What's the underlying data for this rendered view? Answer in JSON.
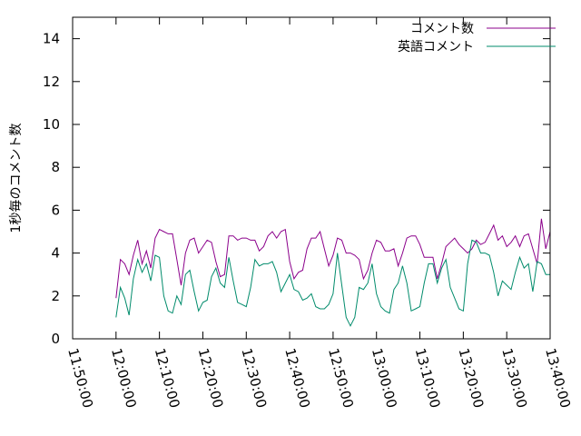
{
  "chart_data": {
    "type": "line",
    "ylabel": "1秒毎のコメント数",
    "xlabel": "",
    "ylim": [
      0,
      15
    ],
    "yticks": [
      0,
      2,
      4,
      6,
      8,
      10,
      12,
      14
    ],
    "xlim": [
      "11:50:00",
      "13:40:00"
    ],
    "xticks": [
      "11:50:00",
      "12:00:00",
      "12:10:00",
      "12:20:00",
      "12:30:00",
      "12:40:00",
      "12:50:00",
      "13:00:00",
      "13:10:00",
      "13:20:00",
      "13:30:00",
      "13:40:00"
    ],
    "grid": false,
    "legend_position": "top-right",
    "series": [
      {
        "name": "コメント数",
        "color": "#8b008b",
        "x": [
          "12:00:00",
          "12:01:00",
          "12:02:00",
          "12:03:00",
          "12:04:00",
          "12:05:00",
          "12:06:00",
          "12:07:00",
          "12:08:00",
          "12:09:00",
          "12:10:00",
          "12:11:00",
          "12:12:00",
          "12:13:00",
          "12:14:00",
          "12:15:00",
          "12:16:00",
          "12:17:00",
          "12:18:00",
          "12:19:00",
          "12:20:00",
          "12:21:00",
          "12:22:00",
          "12:23:00",
          "12:24:00",
          "12:25:00",
          "12:26:00",
          "12:27:00",
          "12:28:00",
          "12:29:00",
          "12:30:00",
          "12:31:00",
          "12:32:00",
          "12:33:00",
          "12:34:00",
          "12:35:00",
          "12:36:00",
          "12:37:00",
          "12:38:00",
          "12:39:00",
          "12:40:00",
          "12:41:00",
          "12:42:00",
          "12:43:00",
          "12:44:00",
          "12:45:00",
          "12:46:00",
          "12:47:00",
          "12:48:00",
          "12:49:00",
          "12:50:00",
          "12:51:00",
          "12:52:00",
          "12:53:00",
          "12:54:00",
          "12:55:00",
          "12:56:00",
          "12:57:00",
          "12:58:00",
          "12:59:00",
          "13:00:00",
          "13:01:00",
          "13:02:00",
          "13:03:00",
          "13:04:00",
          "13:05:00",
          "13:06:00",
          "13:07:00",
          "13:08:00",
          "13:09:00",
          "13:10:00",
          "13:11:00",
          "13:12:00",
          "13:13:00",
          "13:14:00",
          "13:15:00",
          "13:16:00",
          "13:17:00",
          "13:18:00",
          "13:19:00",
          "13:20:00",
          "13:21:00",
          "13:22:00",
          "13:23:00",
          "13:24:00",
          "13:25:00",
          "13:26:00",
          "13:27:00",
          "13:28:00",
          "13:29:00",
          "13:30:00",
          "13:31:00",
          "13:32:00",
          "13:33:00",
          "13:34:00",
          "13:35:00",
          "13:36:00",
          "13:37:00",
          "13:38:00",
          "13:39:00",
          "13:40:00"
        ],
        "values": [
          1.9,
          3.7,
          3.5,
          3.0,
          3.9,
          4.6,
          3.5,
          4.1,
          3.3,
          4.7,
          5.1,
          5.0,
          4.9,
          4.9,
          3.7,
          2.5,
          4.0,
          4.6,
          4.7,
          4.0,
          4.3,
          4.6,
          4.5,
          3.6,
          2.9,
          3.0,
          4.8,
          4.8,
          4.6,
          4.7,
          4.7,
          4.6,
          4.6,
          4.1,
          4.3,
          4.8,
          5.0,
          4.7,
          5.0,
          5.1,
          3.6,
          2.8,
          3.1,
          3.2,
          4.2,
          4.7,
          4.7,
          5.0,
          4.2,
          3.4,
          3.9,
          4.7,
          4.6,
          4.0,
          4.0,
          3.9,
          3.7,
          2.8,
          3.2,
          4.0,
          4.6,
          4.5,
          4.1,
          4.1,
          4.2,
          3.4,
          4.0,
          4.7,
          4.8,
          4.8,
          4.4,
          3.8,
          3.8,
          3.8,
          2.8,
          3.5,
          4.3,
          4.5,
          4.7,
          4.4,
          4.2,
          4.0,
          4.2,
          4.6,
          4.4,
          4.5,
          4.9,
          5.3,
          4.6,
          4.8,
          4.3,
          4.5,
          4.8,
          4.3,
          4.8,
          4.9,
          4.2,
          3.5,
          5.6,
          4.2,
          5.0
        ]
      },
      {
        "name": "英語コメント",
        "color": "#008b6b",
        "x": [
          "12:00:00",
          "12:01:00",
          "12:02:00",
          "12:03:00",
          "12:04:00",
          "12:05:00",
          "12:06:00",
          "12:07:00",
          "12:08:00",
          "12:09:00",
          "12:10:00",
          "12:11:00",
          "12:12:00",
          "12:13:00",
          "12:14:00",
          "12:15:00",
          "12:16:00",
          "12:17:00",
          "12:18:00",
          "12:19:00",
          "12:20:00",
          "12:21:00",
          "12:22:00",
          "12:23:00",
          "12:24:00",
          "12:25:00",
          "12:26:00",
          "12:27:00",
          "12:28:00",
          "12:29:00",
          "12:30:00",
          "12:31:00",
          "12:32:00",
          "12:33:00",
          "12:34:00",
          "12:35:00",
          "12:36:00",
          "12:37:00",
          "12:38:00",
          "12:39:00",
          "12:40:00",
          "12:41:00",
          "12:42:00",
          "12:43:00",
          "12:44:00",
          "12:45:00",
          "12:46:00",
          "12:47:00",
          "12:48:00",
          "12:49:00",
          "12:50:00",
          "12:51:00",
          "12:52:00",
          "12:53:00",
          "12:54:00",
          "12:55:00",
          "12:56:00",
          "12:57:00",
          "12:58:00",
          "12:59:00",
          "13:00:00",
          "13:01:00",
          "13:02:00",
          "13:03:00",
          "13:04:00",
          "13:05:00",
          "13:06:00",
          "13:07:00",
          "13:08:00",
          "13:09:00",
          "13:10:00",
          "13:11:00",
          "13:12:00",
          "13:13:00",
          "13:14:00",
          "13:15:00",
          "13:16:00",
          "13:17:00",
          "13:18:00",
          "13:19:00",
          "13:20:00",
          "13:21:00",
          "13:22:00",
          "13:23:00",
          "13:24:00",
          "13:25:00",
          "13:26:00",
          "13:27:00",
          "13:28:00",
          "13:29:00",
          "13:30:00",
          "13:31:00",
          "13:32:00",
          "13:33:00",
          "13:34:00",
          "13:35:00",
          "13:36:00",
          "13:37:00",
          "13:38:00",
          "13:39:00",
          "13:40:00"
        ],
        "values": [
          1.0,
          2.4,
          1.9,
          1.1,
          2.8,
          3.7,
          3.1,
          3.5,
          2.7,
          3.9,
          3.8,
          2.0,
          1.3,
          1.2,
          2.0,
          1.6,
          3.0,
          3.2,
          2.2,
          1.3,
          1.7,
          1.8,
          2.9,
          3.3,
          2.6,
          2.4,
          3.8,
          2.7,
          1.7,
          1.6,
          1.5,
          2.4,
          3.7,
          3.4,
          3.5,
          3.5,
          3.6,
          3.1,
          2.2,
          2.6,
          3.0,
          2.3,
          2.2,
          1.8,
          1.9,
          2.1,
          1.5,
          1.4,
          1.4,
          1.6,
          2.1,
          4.0,
          2.5,
          1.0,
          0.6,
          1.0,
          2.4,
          2.3,
          2.6,
          3.5,
          2.1,
          1.5,
          1.3,
          1.2,
          2.3,
          2.6,
          3.4,
          2.6,
          1.3,
          1.4,
          1.5,
          2.6,
          3.5,
          3.5,
          2.6,
          3.3,
          3.7,
          2.4,
          1.9,
          1.4,
          1.3,
          3.5,
          4.6,
          4.5,
          4.0,
          4.0,
          3.9,
          3.1,
          2.0,
          2.7,
          2.5,
          2.3,
          3.1,
          3.8,
          3.3,
          3.5,
          2.2,
          3.6,
          3.5,
          3.0,
          3.0
        ]
      }
    ]
  }
}
